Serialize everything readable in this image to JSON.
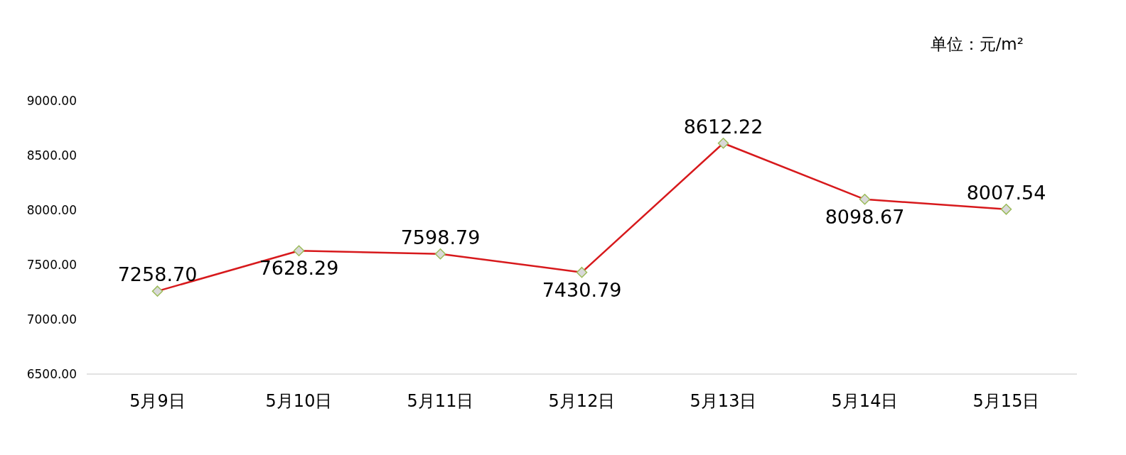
{
  "chart_data": {
    "type": "line",
    "categories": [
      "5月9日",
      "5月10日",
      "5月11日",
      "5月12日",
      "5月13日",
      "5月14日",
      "5月15日"
    ],
    "series": [
      {
        "color": "#d7191c",
        "values": [
          7258.7,
          7628.29,
          7598.79,
          7430.79,
          8612.22,
          8098.67,
          8007.54
        ],
        "value_labels": [
          "7258.70",
          "7628.29",
          "7598.79",
          "7430.79",
          "8612.22",
          "8098.67",
          "8007.54"
        ]
      }
    ],
    "ylim": [
      6500,
      9000
    ],
    "yticks": [
      {
        "value": 6500,
        "label": "6500.00"
      },
      {
        "value": 7000,
        "label": "7000.00"
      },
      {
        "value": 7500,
        "label": "7500.00"
      },
      {
        "value": 8000,
        "label": "8000.00"
      },
      {
        "value": 8500,
        "label": "8500.00"
      },
      {
        "value": 9000,
        "label": "9000.00"
      }
    ],
    "marker": "diamond",
    "line_style": "solid",
    "grid": false,
    "annotations": [
      "单位：元/m²"
    ]
  }
}
